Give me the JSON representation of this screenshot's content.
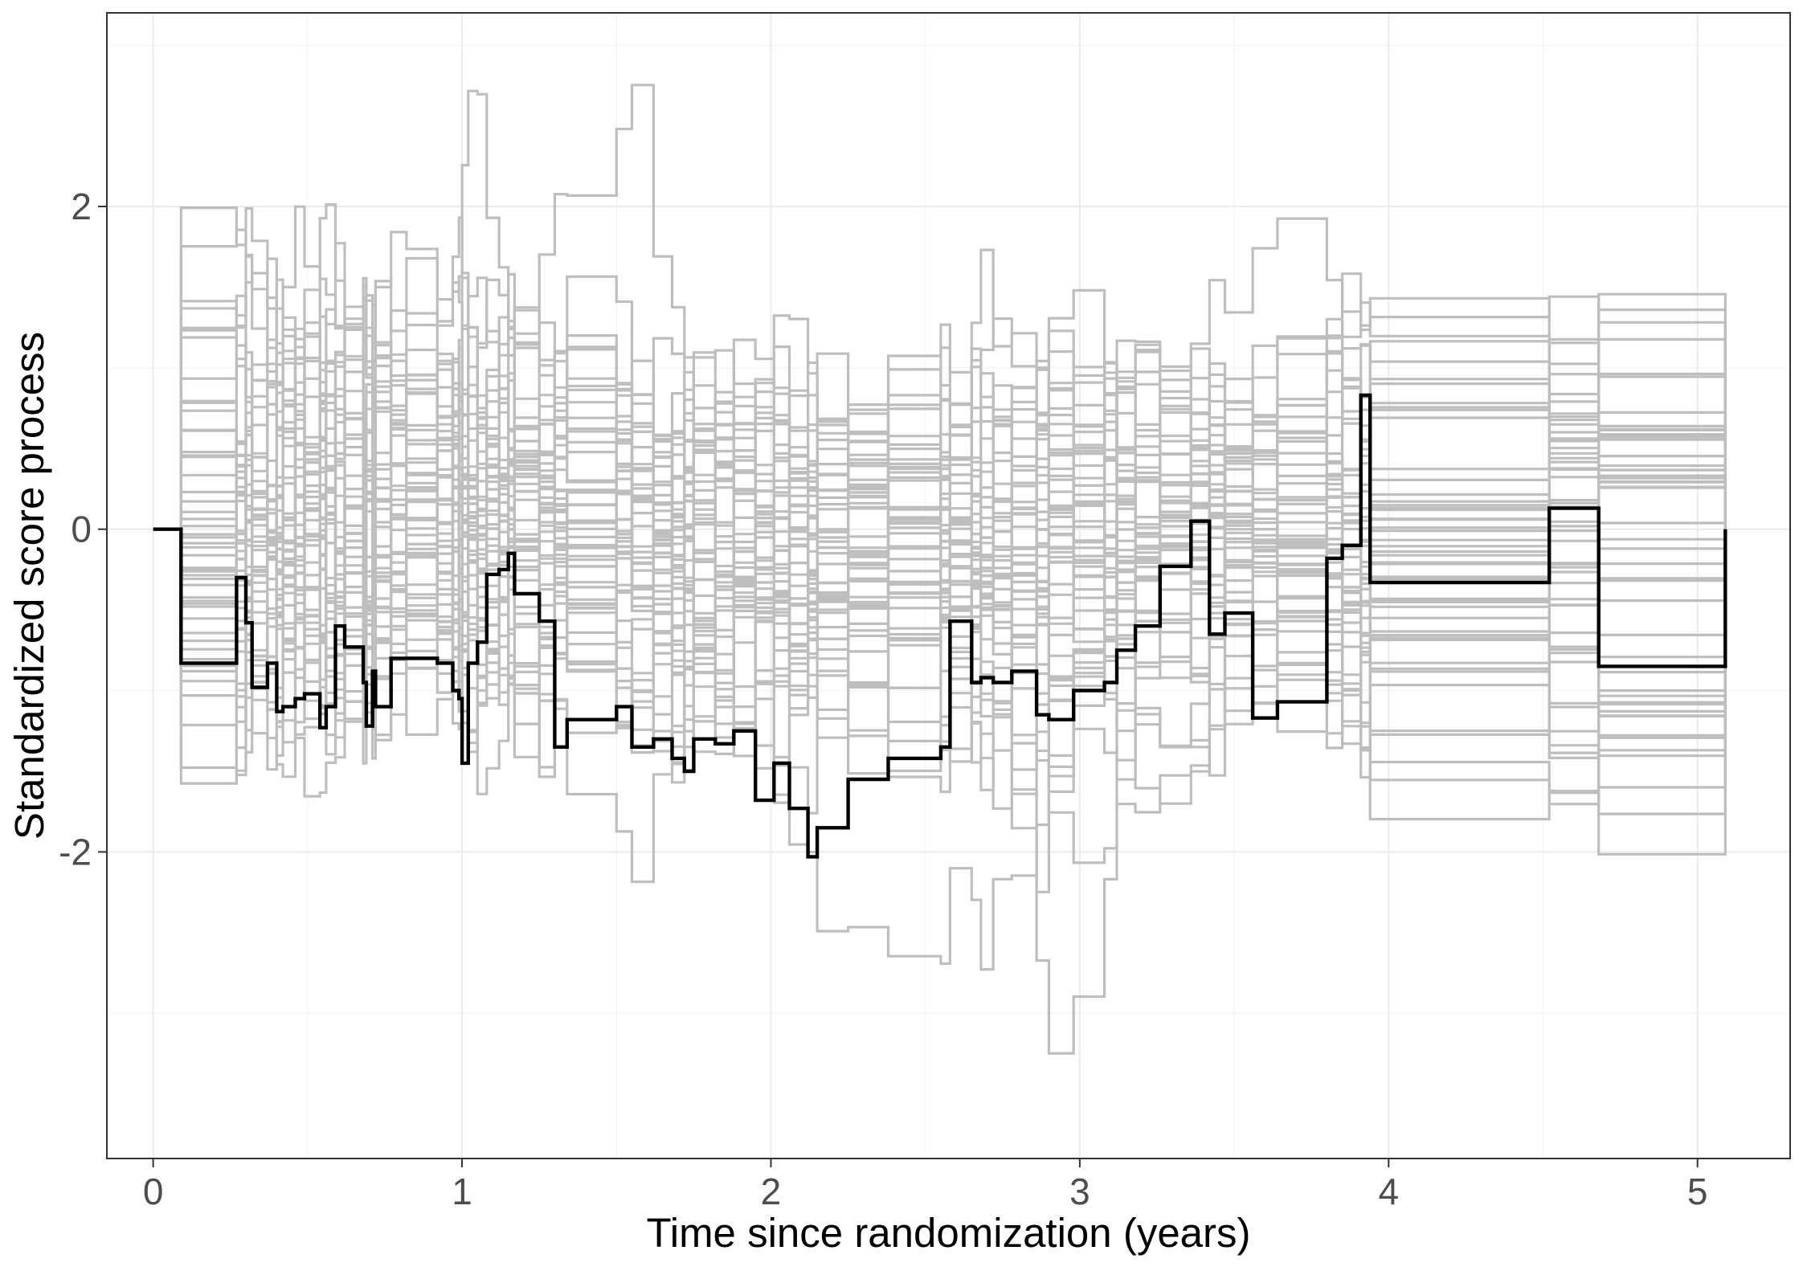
{
  "chart_data": {
    "type": "line",
    "step": true,
    "xlabel": "Time since randomization (years)",
    "ylabel": "Standardized score process",
    "xlim": [
      -0.15,
      5.3
    ],
    "ylim": [
      -3.9,
      3.2
    ],
    "xticks": [
      0,
      1,
      2,
      3,
      4,
      5
    ],
    "yticks": [
      -2,
      0,
      2
    ],
    "xtick_labels": [
      "0",
      "1",
      "2",
      "3",
      "4",
      "5"
    ],
    "ytick_labels": [
      "-2",
      "0",
      "2"
    ],
    "grid": true,
    "legend": "none",
    "colors": {
      "simulated": "#bebebe",
      "observed": "#000000",
      "grid": "#ebebeb"
    },
    "series": [
      {
        "role": "observed",
        "x": [
          0,
          0.09,
          0.27,
          0.3,
          0.32,
          0.37,
          0.4,
          0.42,
          0.46,
          0.49,
          0.54,
          0.56,
          0.59,
          0.62,
          0.68,
          0.69,
          0.71,
          0.72,
          0.77,
          0.82,
          0.92,
          0.97,
          0.99,
          1.0,
          1.02,
          1.05,
          1.08,
          1.12,
          1.15,
          1.17,
          1.25,
          1.3,
          1.34,
          1.5,
          1.55,
          1.62,
          1.68,
          1.72,
          1.75,
          1.82,
          1.88,
          1.95,
          2.01,
          2.06,
          2.12,
          2.15,
          2.25,
          2.38,
          2.55,
          2.58,
          2.65,
          2.68,
          2.72,
          2.78,
          2.86,
          2.9,
          2.98,
          3.08,
          3.12,
          3.18,
          3.26,
          3.36,
          3.42,
          3.47,
          3.56,
          3.64,
          3.8,
          3.85,
          3.91,
          3.94,
          4.52,
          4.68,
          5.09
        ],
        "y": [
          0,
          -0.83,
          -0.3,
          -0.58,
          -0.98,
          -0.83,
          -1.13,
          -1.1,
          -1.05,
          -1.02,
          -1.23,
          -1.1,
          -0.6,
          -0.73,
          -0.95,
          -1.22,
          -0.88,
          -1.1,
          -0.8,
          -0.8,
          -0.83,
          -1.0,
          -1.05,
          -1.45,
          -0.83,
          -0.7,
          -0.28,
          -0.25,
          -0.15,
          -0.4,
          -0.57,
          -1.35,
          -1.18,
          -1.1,
          -1.35,
          -1.3,
          -1.42,
          -1.5,
          -1.3,
          -1.33,
          -1.25,
          -1.68,
          -1.45,
          -1.73,
          -2.03,
          -1.85,
          -1.55,
          -1.42,
          -1.35,
          -0.57,
          -0.95,
          -0.92,
          -0.95,
          -0.88,
          -1.15,
          -1.18,
          -1.0,
          -0.95,
          -0.75,
          -0.6,
          -0.23,
          0.05,
          -0.65,
          -0.52,
          -1.17,
          -1.07,
          -0.18,
          -0.1,
          0.83,
          -0.33,
          0.13,
          -0.85,
          0
        ]
      }
    ]
  }
}
